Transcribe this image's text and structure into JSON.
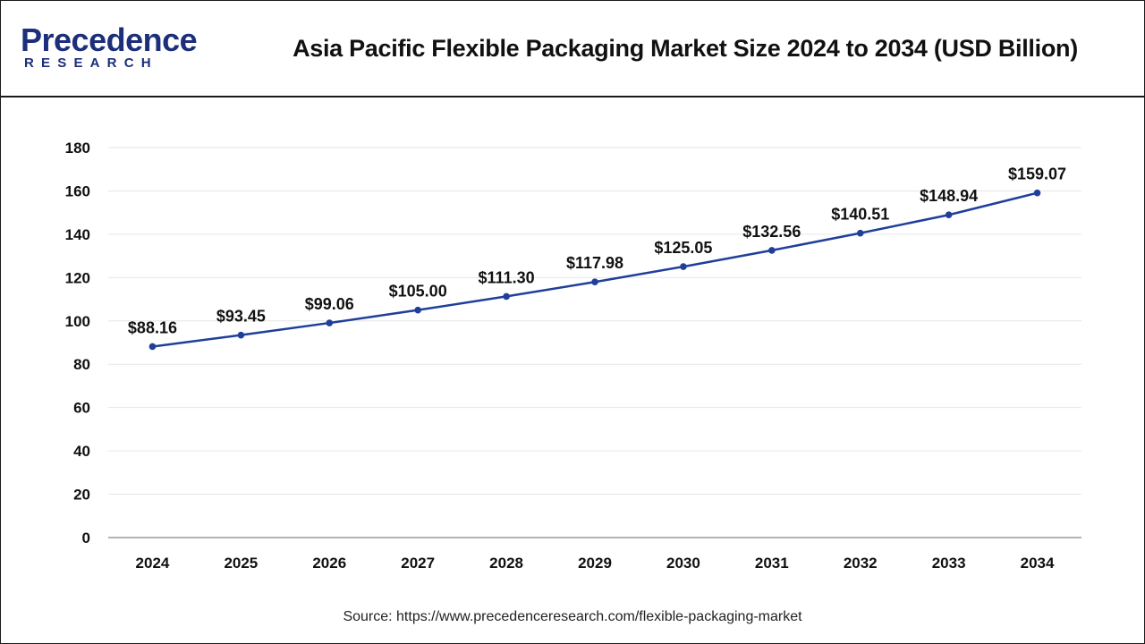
{
  "brand": {
    "logo_top": "Precedence",
    "logo_bottom": "RESEARCH"
  },
  "source": "Source: https://www.precedenceresearch.com/flexible-packaging-market",
  "colors": {
    "line": "#1f3f99",
    "marker": "#1f3f99",
    "grid": "#e6e6e6",
    "axis": "#9a9a9a",
    "text": "#111111",
    "brand": "#1c2f7a"
  },
  "chart_data": {
    "type": "line",
    "title": "Asia Pacific Flexible Packaging Market Size 2024 to 2034 (USD Billion)",
    "categories": [
      "2024",
      "2025",
      "2026",
      "2027",
      "2028",
      "2029",
      "2030",
      "2031",
      "2032",
      "2033",
      "2034"
    ],
    "values": [
      88.16,
      93.45,
      99.06,
      105.0,
      111.3,
      117.98,
      125.05,
      132.56,
      140.51,
      148.94,
      159.07
    ],
    "data_labels": [
      "$88.16",
      "$93.45",
      "$99.06",
      "$105.00",
      "$111.30",
      "$117.98",
      "$125.05",
      "$132.56",
      "$140.51",
      "$148.94",
      "$159.07"
    ],
    "ylim": [
      0,
      180
    ],
    "yticks": [
      0,
      20,
      40,
      60,
      80,
      100,
      120,
      140,
      160,
      180
    ],
    "xlabel": "",
    "ylabel": "",
    "grid": true,
    "legend": "none"
  }
}
